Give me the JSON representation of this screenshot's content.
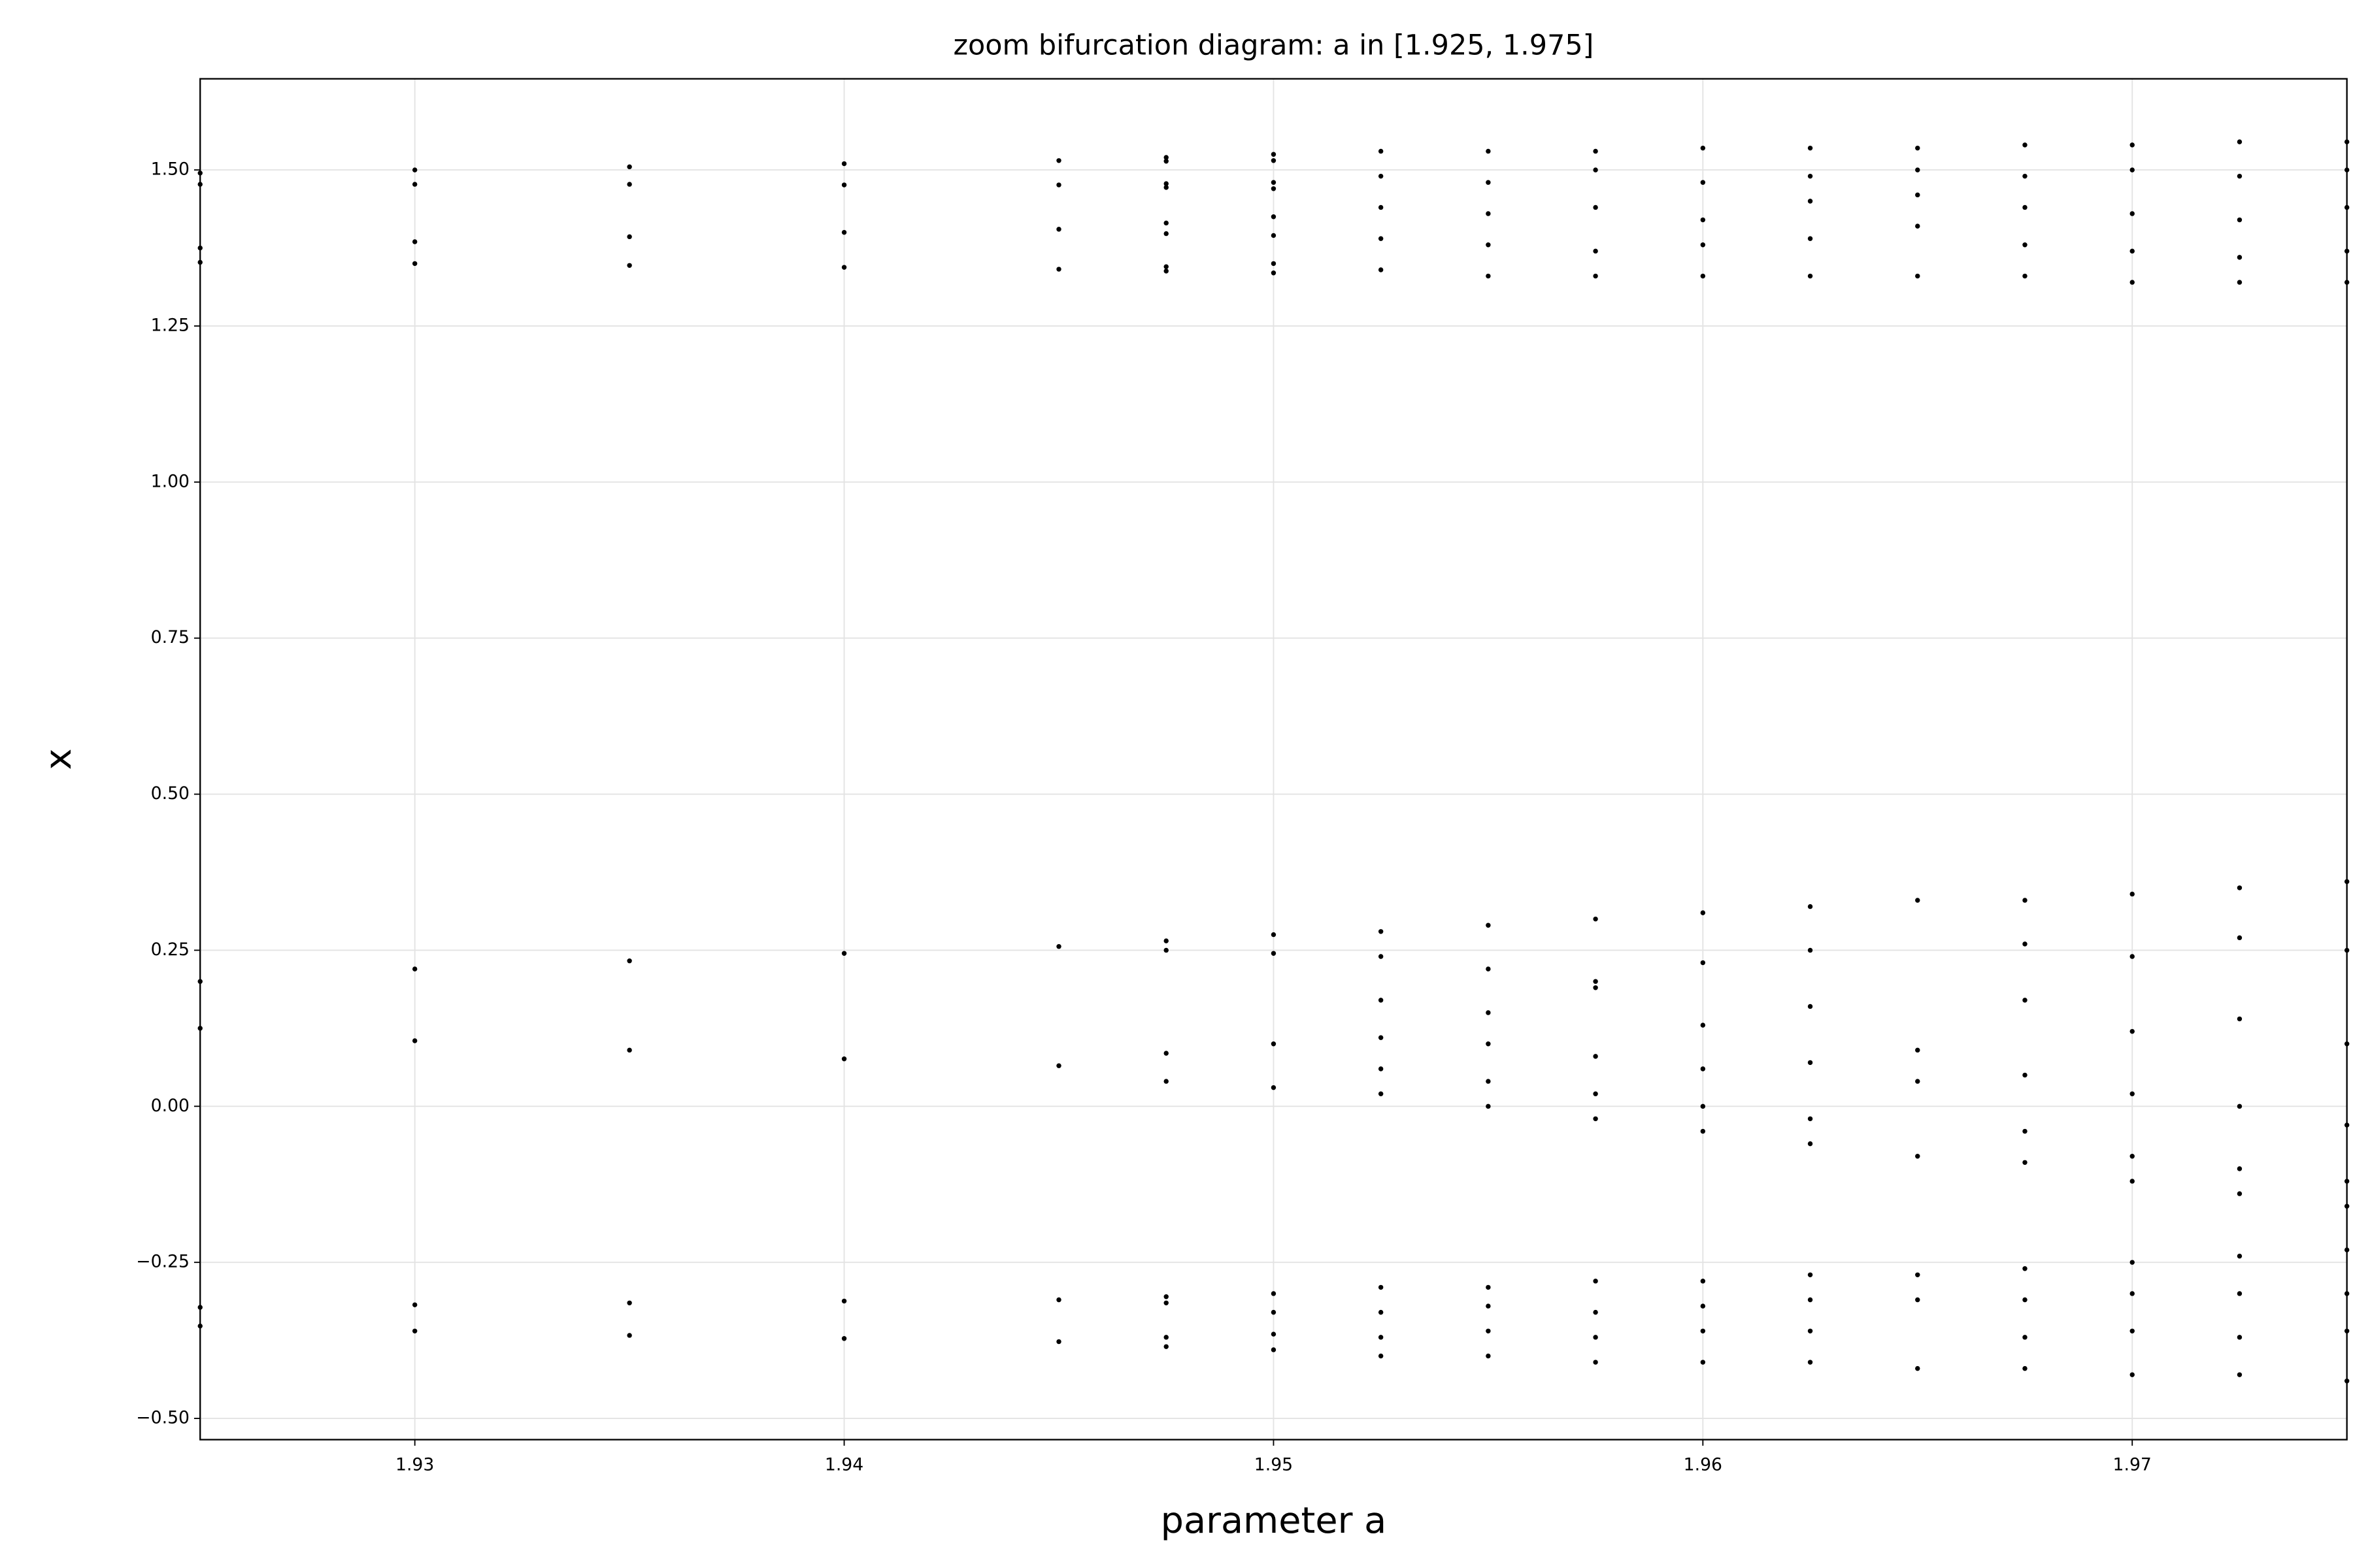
{
  "chart_data": {
    "type": "scatter",
    "title": "zoom bifurcation diagram: a in [1.925, 1.975]",
    "xlabel": "parameter a",
    "ylabel": "x",
    "color": "#000000",
    "grid": true,
    "xlim": [
      1.925,
      1.975
    ],
    "xticks": [
      1.93,
      1.94,
      1.95,
      1.96,
      1.97
    ],
    "ylim": [
      -0.534,
      1.646
    ],
    "yticks": [
      {
        "value": -0.5,
        "label": "−0.50"
      },
      {
        "value": -0.25,
        "label": "−0.25"
      },
      {
        "value": 0,
        "label": "0.00"
      },
      {
        "value": 0.25,
        "label": "0.25"
      },
      {
        "value": 0.5,
        "label": "0.50"
      },
      {
        "value": 0.75,
        "label": "0.75"
      },
      {
        "value": 1,
        "label": "1.00"
      },
      {
        "value": 1.25,
        "label": "1.25"
      },
      {
        "value": 1.5,
        "label": "1.50"
      }
    ],
    "x": [
      1.925,
      1.925,
      1.925,
      1.925,
      1.925,
      1.925,
      1.925,
      1.925,
      1.93,
      1.93,
      1.93,
      1.93,
      1.93,
      1.93,
      1.93,
      1.93,
      1.935,
      1.935,
      1.935,
      1.935,
      1.935,
      1.935,
      1.935,
      1.935,
      1.94,
      1.94,
      1.94,
      1.94,
      1.94,
      1.94,
      1.94,
      1.94,
      1.945,
      1.945,
      1.945,
      1.945,
      1.945,
      1.945,
      1.945,
      1.945,
      1.9475,
      1.9475,
      1.9475,
      1.9475,
      1.9475,
      1.9475,
      1.9475,
      1.9475,
      1.9475,
      1.9475,
      1.9475,
      1.9475,
      1.9475,
      1.9475,
      1.9475,
      1.9475,
      1.95,
      1.95,
      1.95,
      1.95,
      1.95,
      1.95,
      1.95,
      1.95,
      1.95,
      1.95,
      1.95,
      1.95,
      1.95,
      1.95,
      1.95,
      1.95,
      1.9525,
      1.9525,
      1.9525,
      1.9525,
      1.9525,
      1.9525,
      1.9525,
      1.9525,
      1.9525,
      1.9525,
      1.9525,
      1.9525,
      1.9525,
      1.9525,
      1.9525,
      1.955,
      1.955,
      1.955,
      1.955,
      1.955,
      1.955,
      1.955,
      1.955,
      1.955,
      1.955,
      1.955,
      1.955,
      1.955,
      1.955,
      1.955,
      1.9575,
      1.9575,
      1.9575,
      1.9575,
      1.9575,
      1.9575,
      1.9575,
      1.9575,
      1.9575,
      1.9575,
      1.9575,
      1.9575,
      1.9575,
      1.9575,
      1.9575,
      1.96,
      1.96,
      1.96,
      1.96,
      1.96,
      1.96,
      1.96,
      1.96,
      1.96,
      1.96,
      1.96,
      1.96,
      1.96,
      1.96,
      1.96,
      1.9625,
      1.9625,
      1.9625,
      1.9625,
      1.9625,
      1.9625,
      1.9625,
      1.9625,
      1.9625,
      1.9625,
      1.9625,
      1.9625,
      1.9625,
      1.9625,
      1.9625,
      1.965,
      1.965,
      1.965,
      1.965,
      1.965,
      1.965,
      1.965,
      1.965,
      1.965,
      1.965,
      1.965,
      1.965,
      1.9675,
      1.9675,
      1.9675,
      1.9675,
      1.9675,
      1.9675,
      1.9675,
      1.9675,
      1.9675,
      1.9675,
      1.9675,
      1.9675,
      1.9675,
      1.9675,
      1.9675,
      1.97,
      1.97,
      1.97,
      1.97,
      1.97,
      1.97,
      1.97,
      1.97,
      1.97,
      1.97,
      1.97,
      1.97,
      1.97,
      1.97,
      1.97,
      1.9725,
      1.9725,
      1.9725,
      1.9725,
      1.9725,
      1.9725,
      1.9725,
      1.9725,
      1.9725,
      1.9725,
      1.9725,
      1.9725,
      1.9725,
      1.9725,
      1.9725,
      1.975,
      1.975,
      1.975,
      1.975,
      1.975,
      1.975,
      1.975,
      1.975,
      1.975,
      1.975,
      1.975,
      1.975,
      1.975,
      1.975,
      1.975
    ],
    "values": [
      1.495,
      1.477,
      1.375,
      1.352,
      0.2,
      0.125,
      -0.322,
      -0.352,
      1.5,
      1.477,
      1.385,
      1.35,
      0.22,
      0.105,
      -0.318,
      -0.36,
      1.505,
      1.477,
      1.393,
      1.347,
      0.233,
      0.09,
      -0.315,
      -0.367,
      1.51,
      1.476,
      1.4,
      1.344,
      0.245,
      0.076,
      -0.312,
      -0.372,
      1.515,
      1.476,
      1.405,
      1.341,
      0.256,
      0.065,
      -0.31,
      -0.377,
      1.52,
      1.514,
      1.478,
      1.472,
      1.415,
      1.398,
      1.345,
      1.338,
      0.265,
      0.25,
      0.085,
      0.04,
      -0.305,
      -0.315,
      -0.37,
      -0.385,
      1.525,
      1.515,
      1.48,
      1.47,
      1.425,
      1.395,
      1.35,
      1.335,
      0.275,
      0.245,
      0.1,
      0.03,
      -0.3,
      -0.33,
      -0.365,
      -0.39,
      1.53,
      1.49,
      1.44,
      1.39,
      1.34,
      0.28,
      0.24,
      0.17,
      0.11,
      0.06,
      0.02,
      -0.29,
      -0.33,
      -0.37,
      -0.4,
      1.53,
      1.48,
      1.43,
      1.38,
      1.33,
      0.29,
      0.22,
      0.15,
      0.1,
      0.04,
      0,
      -0.29,
      -0.32,
      -0.36,
      -0.4,
      1.53,
      1.5,
      1.44,
      1.37,
      1.33,
      0.3,
      0.2,
      0.19,
      0.08,
      0.02,
      -0.02,
      -0.28,
      -0.33,
      -0.37,
      -0.41,
      1.535,
      1.48,
      1.42,
      1.38,
      1.33,
      0.31,
      0.23,
      0.13,
      0.06,
      0,
      -0.04,
      -0.28,
      -0.32,
      -0.36,
      -0.41,
      1.535,
      1.49,
      1.45,
      1.39,
      1.33,
      0.32,
      0.25,
      0.16,
      0.07,
      -0.02,
      -0.06,
      -0.27,
      -0.31,
      -0.36,
      -0.41,
      1.535,
      1.5,
      1.46,
      1.41,
      1.33,
      0.33,
      0.09,
      0.04,
      -0.08,
      -0.27,
      -0.31,
      -0.42,
      1.54,
      1.49,
      1.44,
      1.38,
      1.33,
      0.33,
      0.26,
      0.17,
      0.05,
      -0.04,
      -0.09,
      -0.26,
      -0.31,
      -0.37,
      -0.42,
      1.54,
      1.5,
      1.43,
      1.37,
      1.32,
      0.34,
      0.24,
      0.12,
      0.02,
      -0.08,
      -0.12,
      -0.25,
      -0.3,
      -0.36,
      -0.43,
      1.545,
      1.49,
      1.42,
      1.36,
      1.32,
      0.35,
      0.27,
      0.14,
      0,
      -0.1,
      -0.14,
      -0.24,
      -0.3,
      -0.37,
      -0.43,
      1.545,
      1.5,
      1.44,
      1.37,
      1.32,
      0.36,
      0.25,
      0.1,
      -0.03,
      -0.12,
      -0.16,
      -0.23,
      -0.3,
      -0.36,
      -0.44
    ]
  }
}
